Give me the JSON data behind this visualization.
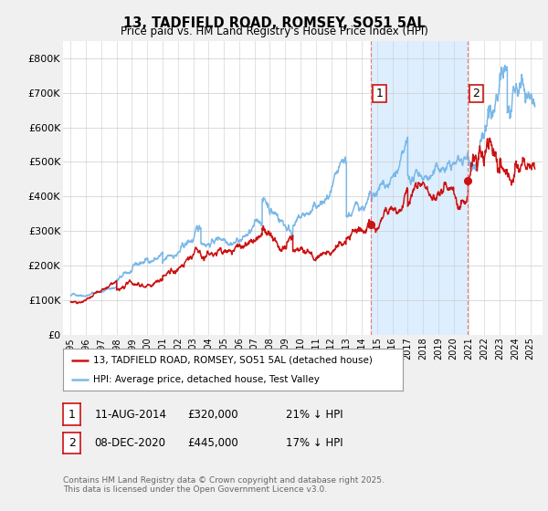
{
  "title": "13, TADFIELD ROAD, ROMSEY, SO51 5AL",
  "subtitle": "Price paid vs. HM Land Registry's House Price Index (HPI)",
  "background_color": "#f0f0f0",
  "plot_bg_color": "#ffffff",
  "hpi_color": "#7ab8e8",
  "price_color": "#cc1111",
  "sale1": {
    "date_num": 2014.62,
    "price": 320000,
    "label": "1",
    "pct": "21% ↓ HPI",
    "date_str": "11-AUG-2014"
  },
  "sale2": {
    "date_num": 2020.94,
    "price": 445000,
    "label": "2",
    "pct": "17% ↓ HPI",
    "date_str": "08-DEC-2020"
  },
  "vline1_x": 2014.62,
  "vline2_x": 2020.94,
  "shade_color": "#ddeeff",
  "ylim_min": 0,
  "ylim_max": 850000,
  "xlim_min": 1994.5,
  "xlim_max": 2025.8,
  "legend_label_price": "13, TADFIELD ROAD, ROMSEY, SO51 5AL (detached house)",
  "legend_label_hpi": "HPI: Average price, detached house, Test Valley",
  "footnote": "Contains HM Land Registry data © Crown copyright and database right 2025.\nThis data is licensed under the Open Government Licence v3.0.",
  "yticks": [
    0,
    100000,
    200000,
    300000,
    400000,
    500000,
    600000,
    700000,
    800000
  ],
  "ytick_labels": [
    "£0",
    "£100K",
    "£200K",
    "£300K",
    "£400K",
    "£500K",
    "£600K",
    "£700K",
    "£800K"
  ],
  "xticks": [
    1995,
    1996,
    1997,
    1998,
    1999,
    2000,
    2001,
    2002,
    2003,
    2004,
    2005,
    2006,
    2007,
    2008,
    2009,
    2010,
    2011,
    2012,
    2013,
    2014,
    2015,
    2016,
    2017,
    2018,
    2019,
    2020,
    2021,
    2022,
    2023,
    2024,
    2025
  ],
  "vline_color": "#e08080",
  "vline_style": "--",
  "label_box_color": "#cc1111",
  "grid_color": "#cccccc"
}
